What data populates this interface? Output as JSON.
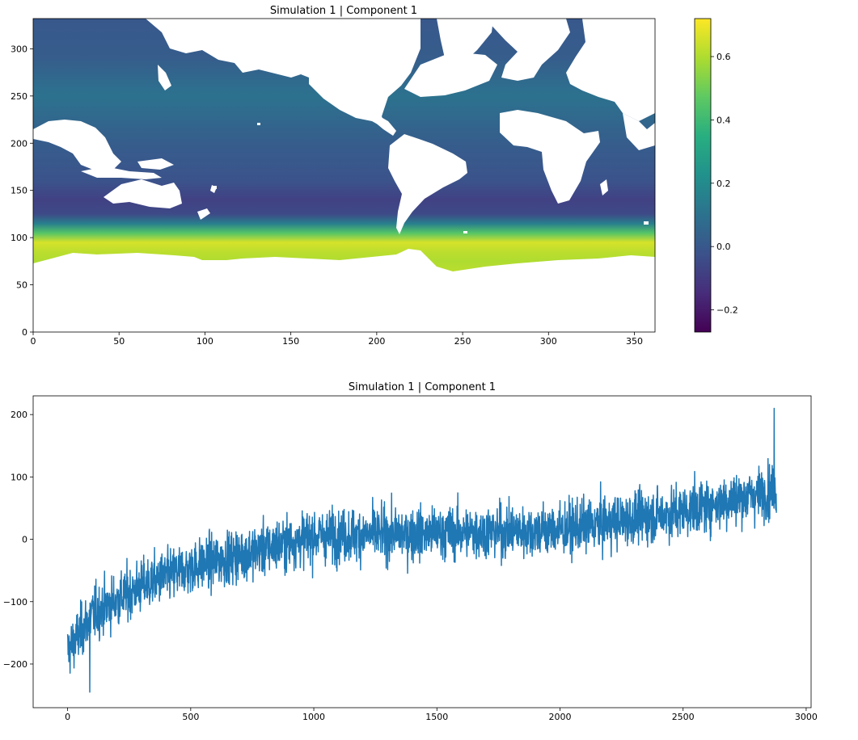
{
  "chart_data": [
    {
      "type": "heatmap",
      "title": "Simulation 1 | Component 1",
      "xlabel": "",
      "ylabel": "",
      "xlim": [
        0,
        362
      ],
      "ylim": [
        0,
        332
      ],
      "xticks": [
        0,
        50,
        100,
        150,
        200,
        250,
        300,
        350
      ],
      "yticks": [
        0,
        50,
        100,
        150,
        200,
        250,
        300
      ],
      "colormap": "viridis",
      "colorbar": {
        "range": [
          -0.27,
          0.72
        ],
        "ticks": [
          -0.2,
          0.0,
          0.2,
          0.4,
          0.6
        ],
        "tick_labels": [
          "−0.2",
          "0.0",
          "0.2",
          "0.4",
          "0.6"
        ]
      },
      "field_profile": {
        "lat": [
          0,
          40,
          60,
          75,
          85,
          95,
          105,
          115,
          125,
          140,
          160,
          200,
          250,
          290,
          332
        ],
        "value": [
          0.65,
          0.65,
          0.62,
          0.6,
          0.62,
          0.66,
          0.45,
          0.15,
          -0.05,
          -0.08,
          -0.02,
          0.02,
          0.1,
          0.02,
          0.0
        ]
      },
      "mask_color": "#ffffff"
    },
    {
      "type": "line",
      "title": "Simulation 1 | Component 1",
      "xlabel": "",
      "ylabel": "",
      "xlim": [
        -140,
        3020
      ],
      "ylim": [
        -270,
        230
      ],
      "xticks": [
        0,
        500,
        1000,
        1500,
        2000,
        2500,
        3000
      ],
      "yticks": [
        -200,
        -100,
        0,
        100,
        200
      ],
      "ytick_labels": [
        "−200",
        "−100",
        "0",
        "100",
        "200"
      ],
      "color": "#1f77b4",
      "n_points": 2880,
      "trend": {
        "x": [
          0,
          100,
          300,
          500,
          800,
          1000,
          1500,
          2000,
          2500,
          2880
        ],
        "y": [
          -180,
          -120,
          -75,
          -45,
          -15,
          5,
          10,
          15,
          45,
          80
        ]
      },
      "noise_sd": 38,
      "extremes": {
        "max": {
          "x": 2870,
          "y": 210
        },
        "min": {
          "x": 90,
          "y": -245
        }
      }
    }
  ]
}
